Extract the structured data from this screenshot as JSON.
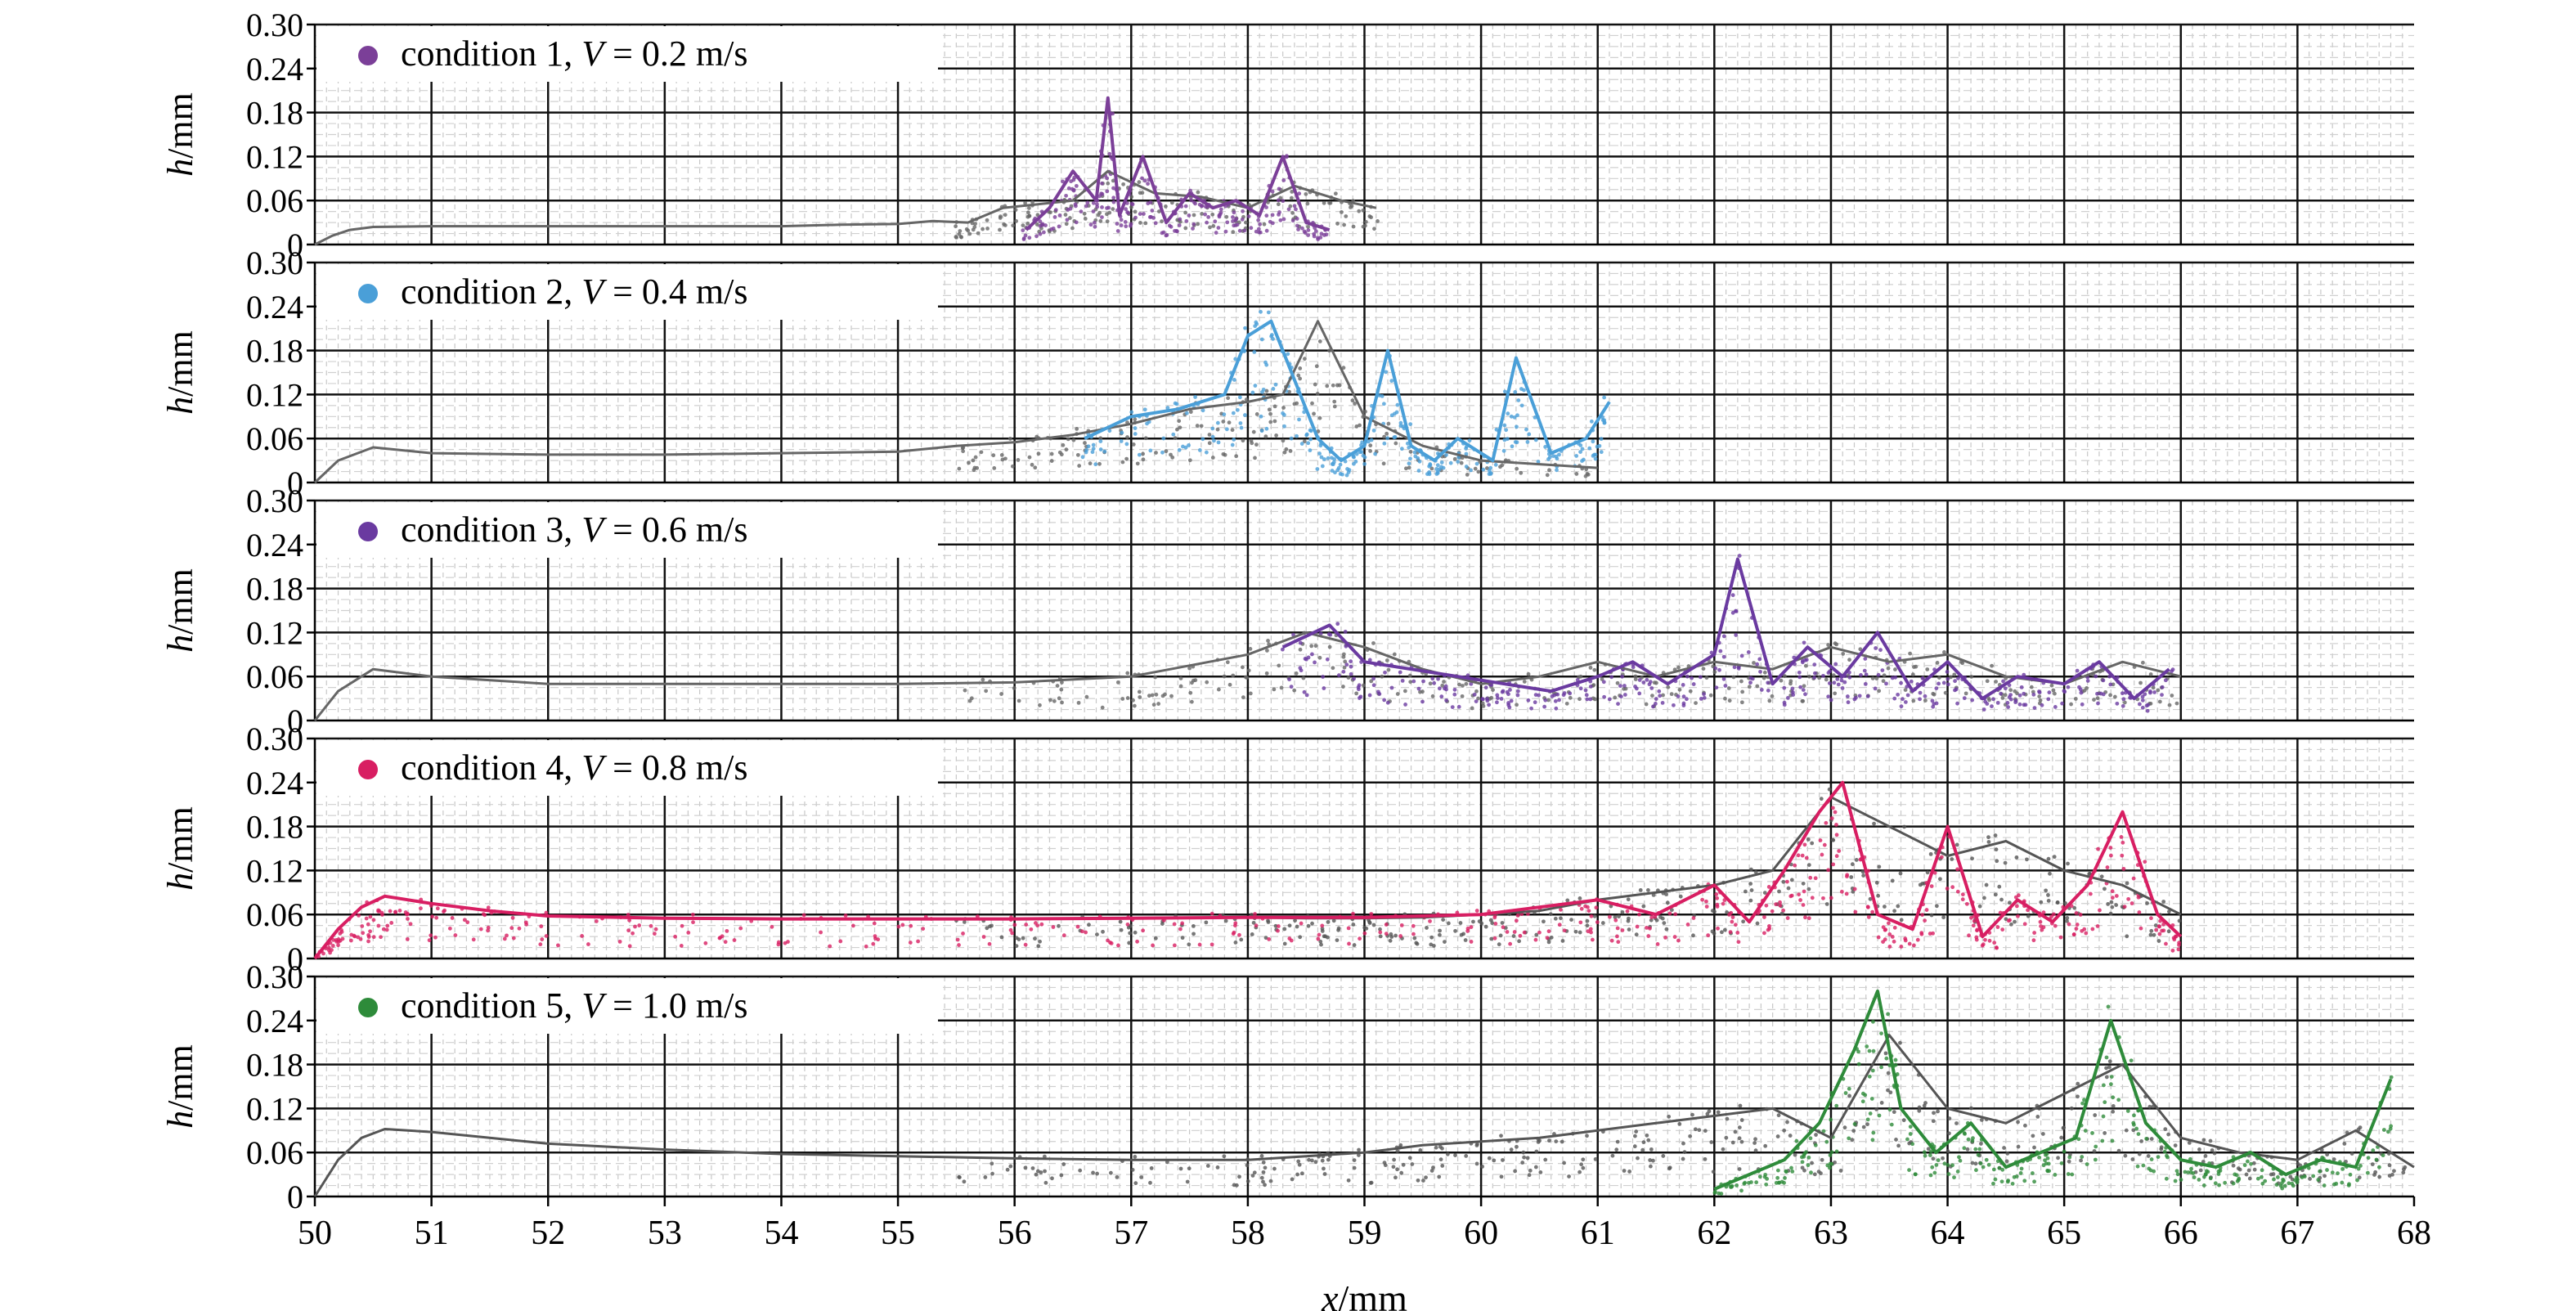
{
  "chart_data": [
    {
      "type": "line",
      "legend": {
        "label": "condition 1, ",
        "var": "V",
        "rest": " = 0.2 m/s",
        "color": "#7b3f98",
        "placement": "top-left"
      },
      "ylabel": {
        "italic": "h",
        "rest": "/mm"
      },
      "ylim": [
        0,
        0.3
      ],
      "yticks": [
        "0",
        "0.06",
        "0.12",
        "0.18",
        "0.24",
        "0.30"
      ],
      "xlim": [
        50,
        68
      ],
      "series": [
        {
          "color": "#666666",
          "x": [
            50,
            50.15,
            50.3,
            50.5,
            51,
            52,
            53,
            54,
            54.5,
            55,
            55.3,
            55.6,
            55.9,
            56.2,
            56.5,
            56.8,
            57.2,
            57.6,
            58,
            58.4,
            58.8,
            59.1
          ],
          "y": [
            0,
            0.012,
            0.02,
            0.024,
            0.025,
            0.025,
            0.025,
            0.025,
            0.027,
            0.028,
            0.032,
            0.03,
            0.05,
            0.055,
            0.06,
            0.1,
            0.07,
            0.065,
            0.05,
            0.08,
            0.06,
            0.05
          ]
        },
        {
          "color": "#7b3f98",
          "x": [
            56.1,
            56.3,
            56.5,
            56.7,
            56.8,
            56.9,
            57.1,
            57.3,
            57.5,
            57.7,
            57.9,
            58.1,
            58.3,
            58.5,
            58.7
          ],
          "y": [
            0.02,
            0.05,
            0.1,
            0.06,
            0.2,
            0.04,
            0.12,
            0.03,
            0.07,
            0.05,
            0.06,
            0.04,
            0.12,
            0.03,
            0.02
          ]
        }
      ]
    },
    {
      "type": "line",
      "legend": {
        "label": "condition 2, ",
        "var": "V",
        "rest": " = 0.4 m/s",
        "color": "#4a9fd8",
        "placement": "top-left"
      },
      "ylabel": {
        "italic": "h",
        "rest": "/mm"
      },
      "ylim": [
        0,
        0.3
      ],
      "yticks": [
        "0",
        "0.06",
        "0.12",
        "0.18",
        "0.24",
        "0.30"
      ],
      "xlim": [
        50,
        68
      ],
      "series": [
        {
          "color": "#666666",
          "x": [
            50,
            50.2,
            50.5,
            51,
            52,
            53,
            54,
            55,
            55.5,
            56,
            56.5,
            57,
            57.5,
            58,
            58.3,
            58.6,
            59,
            59.5,
            60,
            61
          ],
          "y": [
            0,
            0.03,
            0.048,
            0.04,
            0.038,
            0.038,
            0.04,
            0.042,
            0.05,
            0.055,
            0.065,
            0.08,
            0.1,
            0.11,
            0.12,
            0.22,
            0.09,
            0.05,
            0.03,
            0.02
          ]
        },
        {
          "color": "#4a9fd8",
          "x": [
            56.6,
            57,
            57.4,
            57.8,
            58,
            58.2,
            58.4,
            58.6,
            58.8,
            59,
            59.2,
            59.4,
            59.6,
            59.8,
            60.1,
            60.3,
            60.6,
            60.9,
            61.1
          ],
          "y": [
            0.06,
            0.09,
            0.1,
            0.12,
            0.2,
            0.22,
            0.14,
            0.06,
            0.03,
            0.05,
            0.18,
            0.05,
            0.03,
            0.06,
            0.03,
            0.17,
            0.04,
            0.06,
            0.11
          ]
        }
      ]
    },
    {
      "type": "line",
      "legend": {
        "label": "condition 3, ",
        "var": "V",
        "rest": " = 0.6 m/s",
        "color": "#6a3aa0",
        "placement": "top-left"
      },
      "ylabel": {
        "italic": "h",
        "rest": "/mm"
      },
      "ylim": [
        0,
        0.3
      ],
      "yticks": [
        "0",
        "0.06",
        "0.12",
        "0.18",
        "0.24",
        "0.30"
      ],
      "xlim": [
        50,
        68
      ],
      "series": [
        {
          "color": "#666666",
          "x": [
            50,
            50.2,
            50.5,
            51,
            52,
            53,
            54,
            55,
            56,
            57,
            57.5,
            58,
            58.5,
            59,
            59.5,
            60,
            60.5,
            61,
            61.5,
            62,
            62.5,
            63,
            63.5,
            64,
            64.5,
            65,
            65.5,
            66
          ],
          "y": [
            0,
            0.04,
            0.07,
            0.06,
            0.05,
            0.05,
            0.05,
            0.05,
            0.052,
            0.06,
            0.075,
            0.09,
            0.12,
            0.1,
            0.07,
            0.05,
            0.06,
            0.08,
            0.06,
            0.08,
            0.07,
            0.1,
            0.08,
            0.09,
            0.06,
            0.05,
            0.08,
            0.06
          ]
        },
        {
          "color": "#6a3aa0",
          "x": [
            58.3,
            58.7,
            59,
            59.4,
            59.8,
            60.2,
            60.6,
            61,
            61.3,
            61.6,
            62,
            62.2,
            62.5,
            62.8,
            63.1,
            63.4,
            63.7,
            64,
            64.3,
            64.6,
            65,
            65.3,
            65.6,
            65.9
          ],
          "y": [
            0.1,
            0.13,
            0.08,
            0.07,
            0.06,
            0.05,
            0.04,
            0.06,
            0.08,
            0.05,
            0.09,
            0.22,
            0.05,
            0.1,
            0.06,
            0.12,
            0.04,
            0.08,
            0.03,
            0.06,
            0.05,
            0.08,
            0.03,
            0.07
          ]
        }
      ]
    },
    {
      "type": "line",
      "legend": {
        "label": "condition 4, ",
        "var": "V",
        "rest": " = 0.8 m/s",
        "color": "#d81e62",
        "placement": "top-left"
      },
      "ylabel": {
        "italic": "h",
        "rest": "/mm"
      },
      "ylim": [
        0,
        0.3
      ],
      "yticks": [
        "0",
        "0.06",
        "0.12",
        "0.18",
        "0.24",
        "0.30"
      ],
      "xlim": [
        50,
        68
      ],
      "series": [
        {
          "color": "#555555",
          "x": [
            50,
            50.2,
            50.4,
            50.6,
            51,
            51.5,
            52,
            53,
            54,
            55,
            56,
            57,
            58,
            58.5,
            59,
            59.5,
            60,
            60.5,
            61,
            61.5,
            62,
            62.5,
            63,
            63.5,
            64,
            64.5,
            65,
            65.5,
            66
          ],
          "y": [
            0,
            0.04,
            0.07,
            0.085,
            0.075,
            0.065,
            0.058,
            0.055,
            0.054,
            0.054,
            0.054,
            0.055,
            0.056,
            0.055,
            0.055,
            0.056,
            0.06,
            0.065,
            0.08,
            0.09,
            0.1,
            0.12,
            0.22,
            0.18,
            0.14,
            0.16,
            0.12,
            0.1,
            0.06
          ]
        },
        {
          "color": "#d81e62",
          "x": [
            50,
            50.2,
            50.4,
            50.6,
            51,
            51.5,
            52,
            53,
            54,
            55,
            56,
            57,
            58,
            59,
            60,
            60.5,
            61,
            61.5,
            62,
            62.3,
            62.6,
            62.9,
            63.1,
            63.4,
            63.7,
            64,
            64.3,
            64.6,
            64.9,
            65.2,
            65.5,
            65.8,
            66
          ],
          "y": [
            0,
            0.04,
            0.07,
            0.085,
            0.075,
            0.065,
            0.058,
            0.055,
            0.054,
            0.054,
            0.054,
            0.055,
            0.056,
            0.056,
            0.06,
            0.07,
            0.08,
            0.06,
            0.1,
            0.05,
            0.12,
            0.2,
            0.24,
            0.06,
            0.04,
            0.18,
            0.03,
            0.08,
            0.05,
            0.1,
            0.2,
            0.06,
            0.03
          ]
        }
      ]
    },
    {
      "type": "line",
      "legend": {
        "label": "condition 5, ",
        "var": "V",
        "rest": " = 1.0 m/s",
        "color": "#2e8b3a",
        "placement": "top-left"
      },
      "ylabel": {
        "italic": "h",
        "rest": "/mm"
      },
      "ylim": [
        0,
        0.3
      ],
      "yticks": [
        "0",
        "0.06",
        "0.12",
        "0.18",
        "0.24",
        "0.30"
      ],
      "xlim": [
        50,
        68
      ],
      "xticks": [
        "50",
        "51",
        "52",
        "53",
        "54",
        "55",
        "56",
        "57",
        "58",
        "59",
        "60",
        "61",
        "62",
        "63",
        "64",
        "65",
        "66",
        "67",
        "68"
      ],
      "xlabel": {
        "italic": "x",
        "rest": "/mm"
      },
      "series": [
        {
          "color": "#555555",
          "x": [
            50,
            50.2,
            50.4,
            50.6,
            51,
            51.5,
            52,
            53,
            54,
            55,
            56,
            57,
            58,
            58.5,
            59,
            59.5,
            60,
            60.5,
            61,
            61.5,
            62,
            62.5,
            63,
            63.5,
            64,
            64.5,
            65,
            65.5,
            66,
            66.5,
            67,
            67.5,
            68
          ],
          "y": [
            0,
            0.05,
            0.08,
            0.092,
            0.088,
            0.08,
            0.072,
            0.064,
            0.058,
            0.055,
            0.052,
            0.05,
            0.05,
            0.055,
            0.06,
            0.07,
            0.075,
            0.08,
            0.09,
            0.1,
            0.11,
            0.12,
            0.08,
            0.22,
            0.12,
            0.1,
            0.14,
            0.18,
            0.08,
            0.06,
            0.05,
            0.09,
            0.04
          ]
        },
        {
          "color": "#2e8b3a",
          "x": [
            62,
            62.3,
            62.6,
            62.9,
            63.2,
            63.4,
            63.6,
            63.9,
            64.2,
            64.5,
            64.8,
            65.1,
            65.4,
            65.7,
            66,
            66.3,
            66.6,
            66.9,
            67.2,
            67.5,
            67.8
          ],
          "y": [
            0.01,
            0.03,
            0.05,
            0.1,
            0.2,
            0.28,
            0.12,
            0.06,
            0.1,
            0.04,
            0.06,
            0.08,
            0.24,
            0.1,
            0.05,
            0.04,
            0.06,
            0.03,
            0.05,
            0.04,
            0.16
          ]
        }
      ]
    }
  ]
}
